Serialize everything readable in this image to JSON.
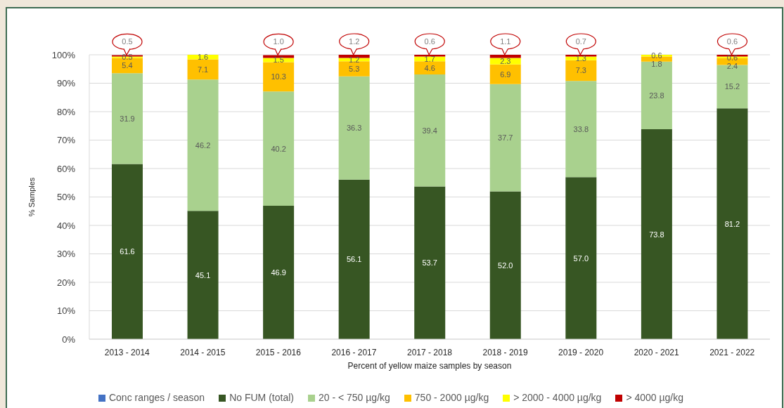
{
  "chart_data": {
    "type": "bar",
    "stacked": true,
    "xlabel": "Percent of yellow maize samples by season",
    "ylabel": "% Samples",
    "categories": [
      "2013 - 2014",
      "2014 - 2015",
      "2015 - 2016",
      "2016 - 2017",
      "2017 - 2018",
      "2018 - 2019",
      "2019 - 2020",
      "2020 - 2021",
      "2021 - 2022"
    ],
    "series": [
      {
        "name": "Conc ranges / season",
        "color": "#4472c4",
        "values": [
          null,
          null,
          null,
          null,
          null,
          null,
          null,
          null,
          null
        ]
      },
      {
        "name": "No FUM (total)",
        "color": "#375623",
        "values": [
          61.6,
          45.1,
          46.9,
          56.1,
          53.7,
          52.0,
          57.0,
          73.8,
          81.2
        ],
        "value_labels": [
          "61.6",
          "45.1",
          "46.9",
          "56.1",
          "53.7",
          "52.0",
          "57.0",
          "73.8",
          "81.2"
        ]
      },
      {
        "name": "20 - < 750 µg/kg",
        "color": "#a9d18e",
        "values": [
          31.9,
          46.2,
          40.2,
          36.3,
          39.4,
          37.7,
          33.8,
          23.8,
          15.2
        ],
        "value_labels": [
          "31.9",
          "46.2",
          "40.2",
          "36.3",
          "39.4",
          "37.7",
          "33.8",
          "23.8",
          "15.2"
        ]
      },
      {
        "name": "750 - 2000 µg/kg",
        "color": "#ffc000",
        "values": [
          5.4,
          7.1,
          10.3,
          5.3,
          4.6,
          6.9,
          7.3,
          1.8,
          2.4
        ],
        "value_labels": [
          "5.4",
          "7.1",
          "10.3",
          "5.3",
          "4.6",
          "6.9",
          "7.3",
          "1.8",
          "2.4"
        ]
      },
      {
        "name": "> 2000 - 4000 µg/kg",
        "color": "#ffff00",
        "values": [
          0.5,
          1.6,
          1.5,
          1.2,
          1.7,
          2.3,
          1.3,
          0.6,
          0.6
        ],
        "value_labels": [
          "0.5",
          "1.6",
          "1.5",
          "1.2",
          "1.7",
          "2.3",
          "1.3",
          "0.6",
          "0.6"
        ]
      },
      {
        "name": "> 4000 µg/kg",
        "color": "#c00000",
        "values": [
          0.5,
          null,
          1.0,
          1.2,
          0.6,
          1.1,
          0.7,
          null,
          0.6
        ],
        "value_labels": [
          "0.5",
          null,
          "1.0",
          "1.2",
          "0.6",
          "1.1",
          "0.7",
          null,
          "0.6"
        ]
      }
    ],
    "ylim": [
      0,
      100
    ],
    "yticks": [
      {
        "value": 0,
        "label": "0%"
      },
      {
        "value": 10,
        "label": "10%"
      },
      {
        "value": 20,
        "label": "20%"
      },
      {
        "value": 30,
        "label": "30%"
      },
      {
        "value": 40,
        "label": "40%"
      },
      {
        "value": 50,
        "label": "50%"
      },
      {
        "value": 60,
        "label": "60%"
      },
      {
        "value": 70,
        "label": "70%"
      },
      {
        "value": 80,
        "label": "80%"
      },
      {
        "value": 90,
        "label": "90%"
      },
      {
        "value": 100,
        "label": "100%"
      }
    ],
    "grid": "y",
    "legend": "bottom"
  }
}
